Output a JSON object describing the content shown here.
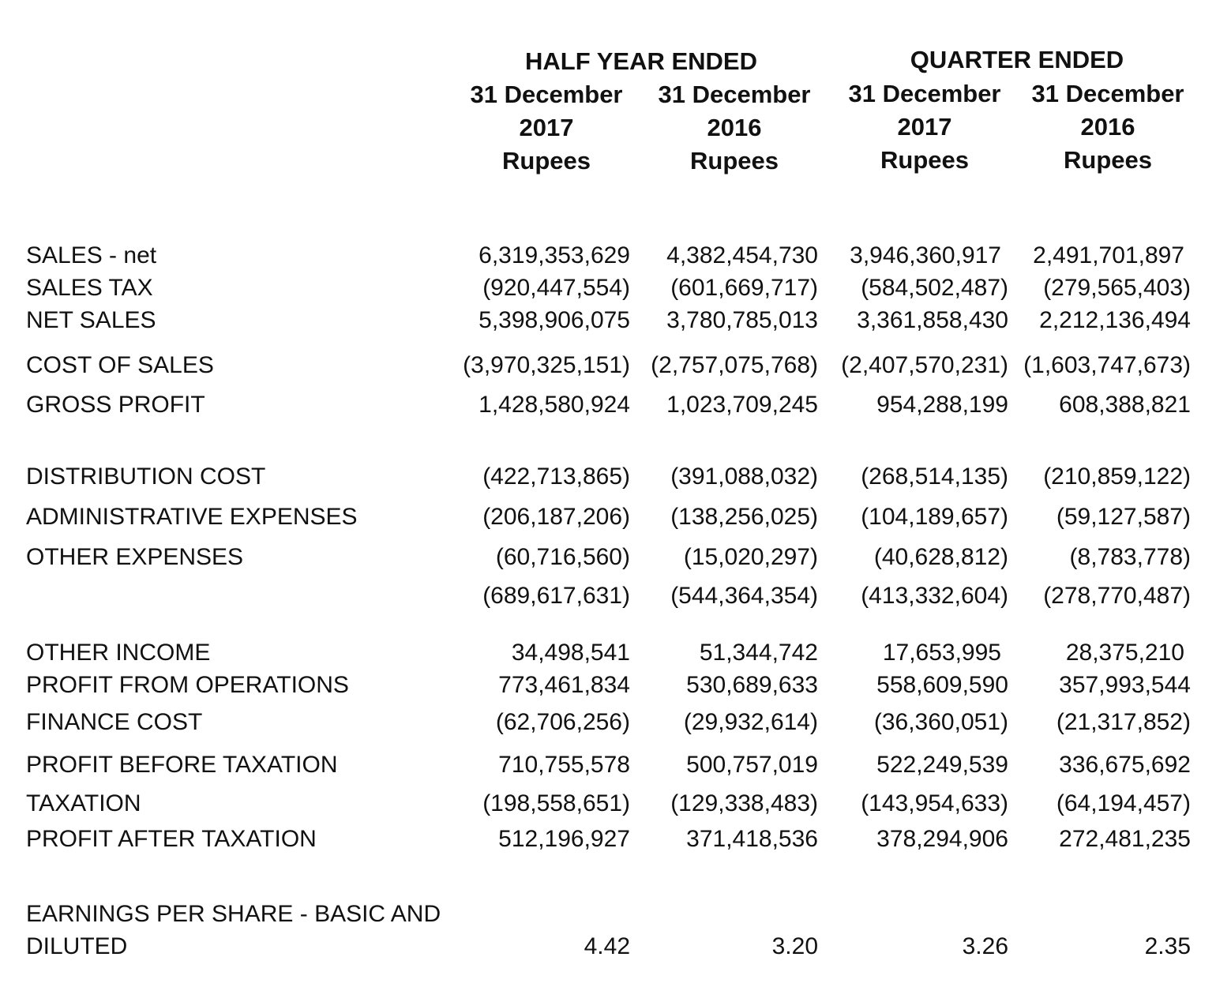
{
  "header": {
    "groups": [
      "HALF YEAR ENDED",
      "QUARTER ENDED"
    ],
    "columns": [
      {
        "date": "31 December",
        "year": "2017",
        "unit": "Rupees"
      },
      {
        "date": "31 December",
        "year": "2016",
        "unit": "Rupees"
      },
      {
        "date": "31 December",
        "year": "2017",
        "unit": "Rupees"
      },
      {
        "date": "31 December",
        "year": "2016",
        "unit": "Rupees"
      }
    ]
  },
  "rows": [
    {
      "label": "SALES - net",
      "values": [
        "6,319,353,629",
        "4,382,454,730",
        "3,946,360,917",
        "2,491,701,897"
      ]
    },
    {
      "label": "SALES TAX",
      "values": [
        "(920,447,554)",
        "(601,669,717)",
        "(584,502,487)",
        "(279,565,403)"
      ]
    },
    {
      "label": "NET SALES",
      "values": [
        "5,398,906,075",
        "3,780,785,013",
        "3,361,858,430",
        "2,212,136,494"
      ]
    },
    {
      "label": "COST OF SALES",
      "values": [
        "(3,970,325,151)",
        "(2,757,075,768)",
        "(2,407,570,231)",
        "(1,603,747,673)"
      ]
    },
    {
      "label": "GROSS PROFIT",
      "values": [
        "1,428,580,924",
        "1,023,709,245",
        "954,288,199",
        "608,388,821"
      ]
    },
    {
      "label": "DISTRIBUTION COST",
      "values": [
        "(422,713,865)",
        "(391,088,032)",
        "(268,514,135)",
        "(210,859,122)"
      ]
    },
    {
      "label": "ADMINISTRATIVE EXPENSES",
      "values": [
        "(206,187,206)",
        "(138,256,025)",
        "(104,189,657)",
        "(59,127,587)"
      ]
    },
    {
      "label": "OTHER EXPENSES",
      "values": [
        "(60,716,560)",
        "(15,020,297)",
        "(40,628,812)",
        "(8,783,778)"
      ]
    },
    {
      "label": "",
      "values": [
        "(689,617,631)",
        "(544,364,354)",
        "(413,332,604)",
        "(278,770,487)"
      ]
    },
    {
      "label": "OTHER INCOME",
      "values": [
        "34,498,541",
        "51,344,742",
        "17,653,995",
        "28,375,210"
      ]
    },
    {
      "label": "PROFIT FROM OPERATIONS",
      "values": [
        "773,461,834",
        "530,689,633",
        "558,609,590",
        "357,993,544"
      ]
    },
    {
      "label": "FINANCE COST",
      "values": [
        "(62,706,256)",
        "(29,932,614)",
        "(36,360,051)",
        "(21,317,852)"
      ]
    },
    {
      "label": "PROFIT BEFORE TAXATION",
      "values": [
        "710,755,578",
        "500,757,019",
        "522,249,539",
        "336,675,692"
      ]
    },
    {
      "label": "TAXATION",
      "values": [
        "(198,558,651)",
        "(129,338,483)",
        "(143,954,633)",
        "(64,194,457)"
      ]
    },
    {
      "label": "PROFIT AFTER TAXATION",
      "values": [
        "512,196,927",
        "371,418,536",
        "378,294,906",
        "272,481,235"
      ]
    }
  ],
  "eps": {
    "label_line1": "EARNINGS PER SHARE - BASIC AND",
    "label_line2": "DILUTED",
    "values": [
      "4.42",
      "3.20",
      "3.26",
      "2.35"
    ]
  }
}
